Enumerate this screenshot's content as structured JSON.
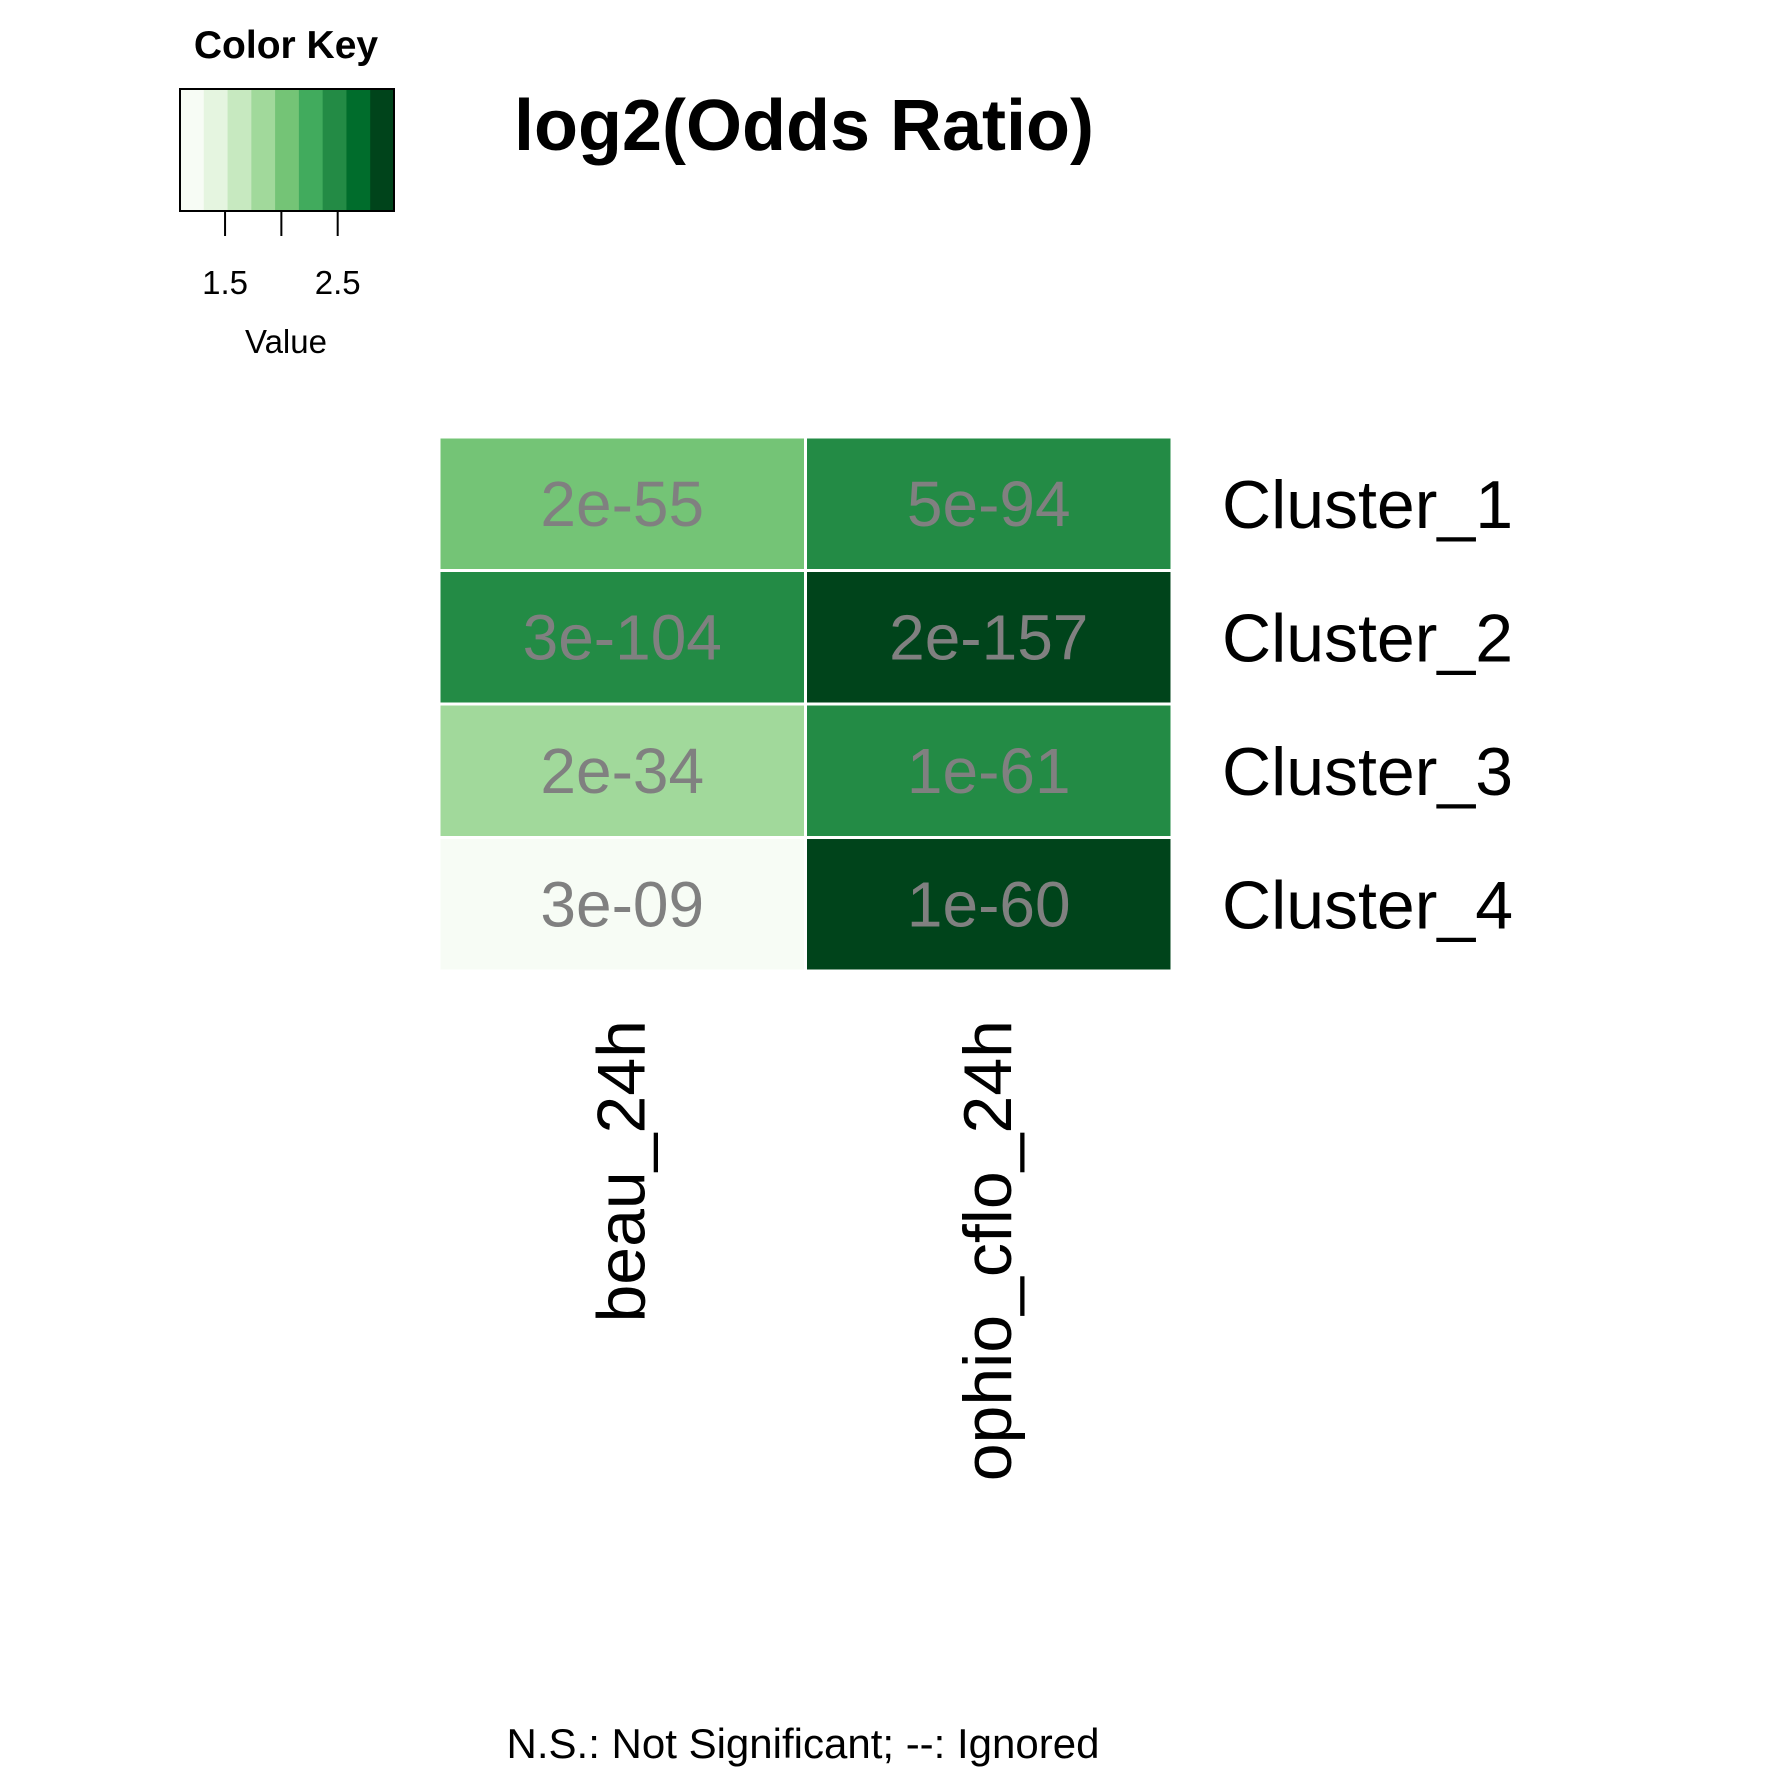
{
  "chart_data": {
    "type": "heatmap",
    "title": "log2(Odds Ratio)",
    "columns": [
      "beau_24h",
      "ophio_cflo_24h"
    ],
    "rows": [
      "Cluster_1",
      "Cluster_2",
      "Cluster_3",
      "Cluster_4"
    ],
    "values": [
      [
        2.05,
        2.55
      ],
      [
        2.55,
        2.9
      ],
      [
        1.75,
        2.55
      ],
      [
        1.2,
        2.9
      ]
    ],
    "cell_labels": [
      [
        "2e-55",
        "5e-94"
      ],
      [
        "3e-104",
        "2e-157"
      ],
      [
        "2e-34",
        "1e-61"
      ],
      [
        "3e-09",
        "1e-60"
      ]
    ],
    "color_key": {
      "title": "Color Key",
      "xlabel": "Value",
      "range": [
        1.1,
        3.0
      ],
      "ticks": [
        1.5,
        2.0,
        2.5
      ],
      "tick_labels": [
        "1.5",
        "2.5"
      ],
      "colors": [
        "#f7fcf5",
        "#e5f5e0",
        "#c7e9c0",
        "#a1d99b",
        "#74c476",
        "#41ab5d",
        "#238b45",
        "#006d2c",
        "#00441b"
      ]
    },
    "footnote": "N.S.: Not Significant; --: Ignored",
    "cell_text_color": "#808080"
  }
}
